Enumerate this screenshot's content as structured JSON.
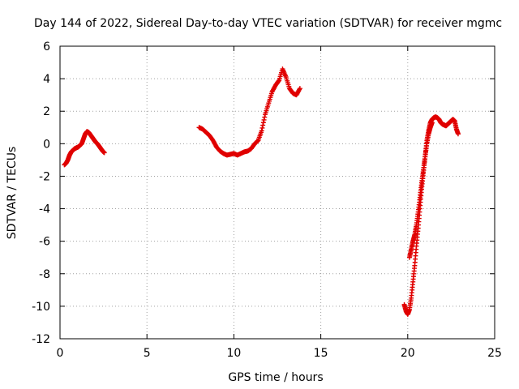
{
  "chart_data": {
    "type": "scatter",
    "title": "Day 144 of 2022, Sidereal Day-to-day VTEC variation (SDTVAR) for receiver mgmc",
    "xlabel": "GPS time / hours",
    "ylabel": "SDTVAR / TECUs",
    "xlim": [
      0,
      25
    ],
    "ylim": [
      -12,
      6
    ],
    "xticks": [
      0,
      5,
      10,
      15,
      20,
      25
    ],
    "xtick_labels": [
      "0",
      "5",
      "10",
      "15",
      "20",
      "25"
    ],
    "yticks": [
      -12,
      -10,
      -8,
      -6,
      -4,
      -2,
      0,
      2,
      4,
      6
    ],
    "ytick_labels": [
      "-12",
      "-10",
      "-8",
      "-6",
      "-4",
      "-2",
      "0",
      "2",
      "4",
      "6"
    ],
    "grid": true,
    "marker": "+",
    "color": "#e00000",
    "series": [
      {
        "name": "segment-1",
        "x": [
          0.25,
          0.35,
          0.45,
          0.55,
          0.65,
          0.75,
          0.85,
          0.95,
          1.05,
          1.15,
          1.25,
          1.35,
          1.45,
          1.55,
          1.65,
          1.75,
          1.85,
          1.95,
          2.05,
          2.15,
          2.25,
          2.35,
          2.45,
          2.55
        ],
        "y": [
          -1.3,
          -1.2,
          -1.0,
          -0.7,
          -0.5,
          -0.4,
          -0.3,
          -0.25,
          -0.2,
          -0.1,
          0.0,
          0.3,
          0.6,
          0.75,
          0.7,
          0.55,
          0.4,
          0.25,
          0.1,
          0.0,
          -0.15,
          -0.3,
          -0.45,
          -0.55
        ]
      },
      {
        "name": "segment-2",
        "x": [
          8.0,
          8.2,
          8.4,
          8.6,
          8.8,
          9.0,
          9.2,
          9.4,
          9.6,
          9.8,
          10.0,
          10.2,
          10.4,
          10.6,
          10.8,
          11.0,
          11.2,
          11.4,
          11.6,
          11.8,
          12.0,
          12.2,
          12.4,
          12.6,
          12.8,
          13.0,
          13.2,
          13.4,
          13.6,
          13.8
        ],
        "y": [
          1.0,
          0.9,
          0.7,
          0.5,
          0.2,
          -0.2,
          -0.45,
          -0.6,
          -0.7,
          -0.65,
          -0.6,
          -0.7,
          -0.6,
          -0.5,
          -0.45,
          -0.3,
          0.0,
          0.2,
          0.8,
          1.8,
          2.5,
          3.2,
          3.6,
          3.9,
          4.6,
          4.1,
          3.4,
          3.1,
          3.0,
          3.4
        ]
      },
      {
        "name": "segment-3",
        "x": [
          19.8,
          19.9,
          20.0,
          20.1,
          20.2,
          20.3,
          20.4,
          20.5,
          20.6,
          20.7,
          20.8,
          20.9,
          21.0,
          21.1,
          21.2,
          21.3,
          21.4,
          21.5,
          21.6,
          21.7,
          21.8,
          21.9,
          22.0,
          22.1,
          22.2,
          22.3,
          22.4,
          22.5,
          22.6,
          22.7,
          22.8,
          22.9
        ],
        "y": [
          -9.9,
          -10.3,
          -10.5,
          -10.2,
          -9.5,
          -8.5,
          -7.5,
          -6.3,
          -5.2,
          -4.0,
          -2.8,
          -1.8,
          -0.8,
          0.2,
          0.8,
          1.3,
          1.5,
          1.6,
          1.65,
          1.6,
          1.5,
          1.3,
          1.2,
          1.15,
          1.1,
          1.2,
          1.3,
          1.4,
          1.5,
          1.4,
          0.9,
          0.6
        ]
      },
      {
        "name": "segment-4",
        "x": [
          20.1,
          20.2,
          20.3,
          20.4,
          20.5,
          20.6,
          20.7,
          20.8,
          20.9,
          21.0,
          21.1,
          21.2,
          21.3,
          21.4
        ],
        "y": [
          -7.0,
          -6.5,
          -6.0,
          -5.6,
          -5.0,
          -4.2,
          -3.3,
          -2.4,
          -1.6,
          -0.8,
          0.0,
          0.6,
          1.0,
          1.3
        ]
      }
    ]
  }
}
